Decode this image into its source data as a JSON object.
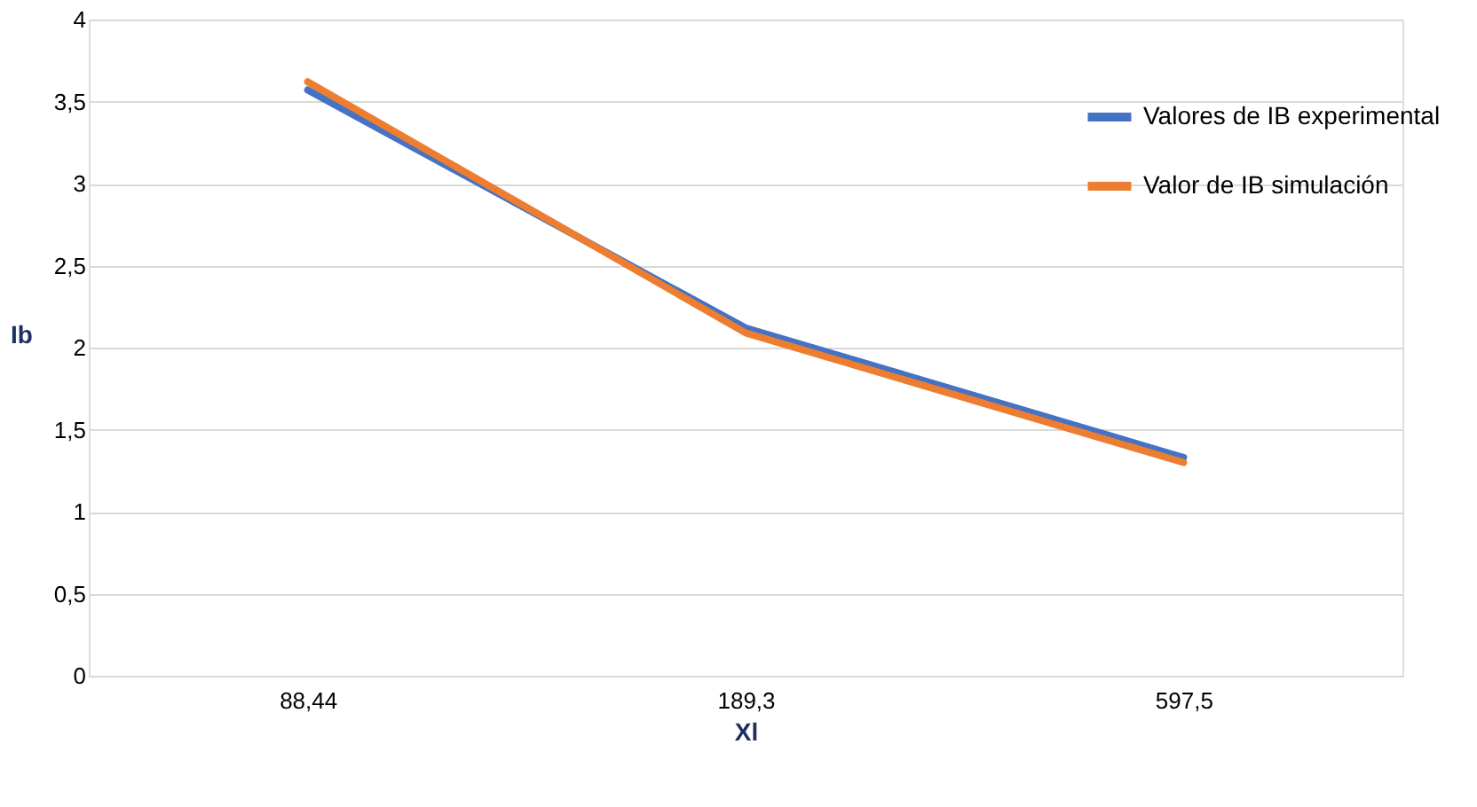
{
  "chart_data": {
    "type": "line",
    "xlabel": "Xl",
    "ylabel": "Ib",
    "categories": [
      "88,44",
      "189,3",
      "597,5"
    ],
    "series": [
      {
        "name": "Valores de IB experimental",
        "color": "#4472c4",
        "values": [
          3.57,
          2.12,
          1.33
        ]
      },
      {
        "name": "Valor de IB simulación",
        "color": "#ed7d31",
        "values": [
          3.62,
          2.09,
          1.3
        ]
      }
    ],
    "ylim": [
      0,
      4
    ],
    "yticks": [
      0,
      {
        "value": 0.5,
        "label": "0,5"
      },
      1,
      {
        "value": 1.5,
        "label": "1,5"
      },
      2,
      {
        "value": 2.5,
        "label": "2,5"
      },
      3,
      {
        "value": 3.5,
        "label": "3,5"
      },
      4
    ],
    "grid": "y",
    "legend": "top right",
    "marker": "none",
    "line_style": "solid"
  }
}
